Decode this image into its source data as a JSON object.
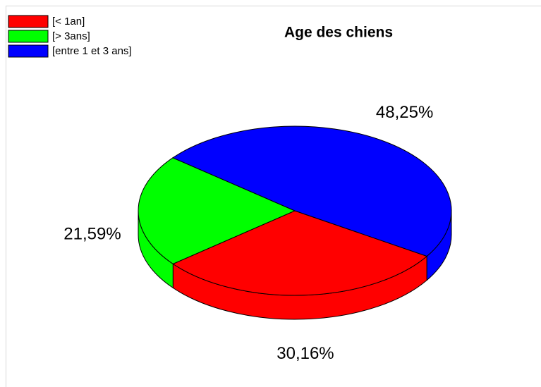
{
  "chart_data": {
    "type": "pie",
    "title": "Age des chiens",
    "categories": [
      "[< 1an]",
      "[> 3ans]",
      "[entre 1 et 3 ans]"
    ],
    "values": [
      30.16,
      21.59,
      48.25
    ],
    "value_labels": [
      "30,16%",
      "21,59%",
      "48,25%"
    ],
    "colors": [
      "#ff0000",
      "#00ff00",
      "#0000ff"
    ],
    "legend": "top-left"
  }
}
